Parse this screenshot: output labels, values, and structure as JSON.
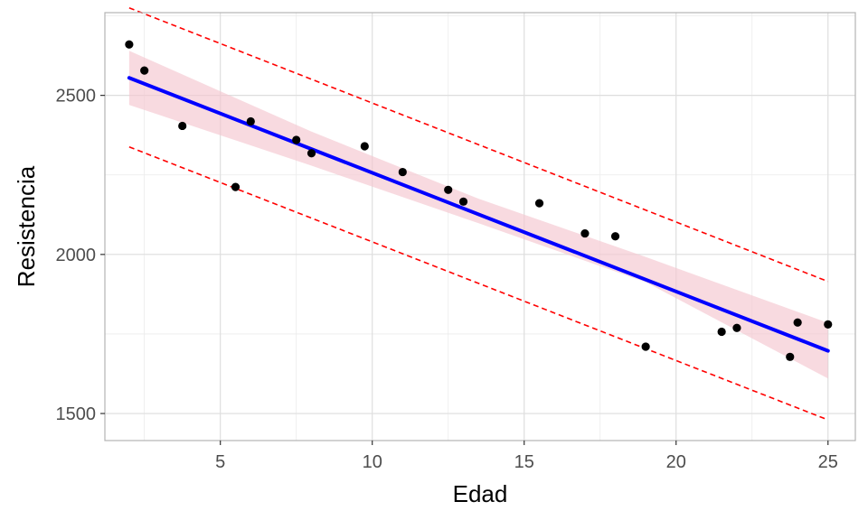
{
  "chart_data": {
    "type": "scatter",
    "title": "",
    "xlabel": "Edad",
    "ylabel": "Resistencia",
    "xlim": [
      1.2,
      25.9
    ],
    "ylim": [
      1415,
      2760
    ],
    "x_ticks": [
      5,
      10,
      15,
      20,
      25
    ],
    "y_ticks": [
      1500,
      2000,
      2500
    ],
    "x_tick_labels": [
      "5",
      "10",
      "15",
      "20",
      "25"
    ],
    "y_tick_labels": [
      "1500",
      "2000",
      "2500"
    ],
    "grid": true,
    "legend": "none",
    "points": [
      {
        "x": 2.0,
        "y": 2660
      },
      {
        "x": 2.5,
        "y": 2578
      },
      {
        "x": 3.75,
        "y": 2404
      },
      {
        "x": 5.5,
        "y": 2212
      },
      {
        "x": 6.0,
        "y": 2418
      },
      {
        "x": 7.5,
        "y": 2360
      },
      {
        "x": 8.0,
        "y": 2318
      },
      {
        "x": 9.75,
        "y": 2340
      },
      {
        "x": 11.0,
        "y": 2259
      },
      {
        "x": 12.5,
        "y": 2203
      },
      {
        "x": 13.0,
        "y": 2166
      },
      {
        "x": 15.5,
        "y": 2161
      },
      {
        "x": 17.0,
        "y": 2066
      },
      {
        "x": 18.0,
        "y": 2057
      },
      {
        "x": 19.0,
        "y": 1710
      },
      {
        "x": 21.5,
        "y": 1757
      },
      {
        "x": 22.0,
        "y": 1769
      },
      {
        "x": 23.75,
        "y": 1678
      },
      {
        "x": 24.0,
        "y": 1786
      },
      {
        "x": 25.0,
        "y": 1780
      }
    ],
    "fit_line": {
      "x": [
        2.0,
        25.0
      ],
      "y": [
        2555,
        1697
      ]
    },
    "confidence_band": {
      "x": [
        2.0,
        8.0,
        13.5,
        19.0,
        25.0
      ],
      "lower": [
        2470,
        2279,
        2098,
        1913,
        1610
      ],
      "upper": [
        2640,
        2386,
        2175,
        1992,
        1785
      ]
    },
    "prediction_interval": {
      "x": [
        2.0,
        25.0
      ],
      "lower": [
        2338,
        1480
      ],
      "upper": [
        2775,
        1915
      ]
    },
    "colors": {
      "points": "#000000",
      "points_overlap": "#5a4444",
      "fit_line": "#0000ff",
      "confidence_band": "#f4c6d0",
      "prediction_interval": "#ff0000",
      "grid": "#dedede",
      "panel_border": "#b3b3b3"
    }
  }
}
